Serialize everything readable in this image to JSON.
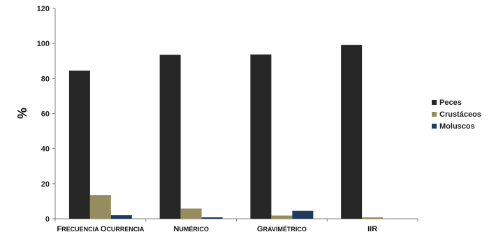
{
  "chart_data": {
    "type": "bar",
    "ylabel": "%",
    "ylim": [
      0,
      120
    ],
    "yticks": [
      0,
      20,
      40,
      60,
      80,
      100,
      120
    ],
    "grid": false,
    "legend_position": "right",
    "categories": [
      [
        {
          "t": "F",
          "b": true
        },
        {
          "t": "RECUENCIA ",
          "b": false
        },
        {
          "t": "O",
          "b": true
        },
        {
          "t": "CURRENCIA",
          "b": false
        }
      ],
      [
        {
          "t": "N",
          "b": true
        },
        {
          "t": "UMÉRICO",
          "b": false
        }
      ],
      [
        {
          "t": "G",
          "b": true
        },
        {
          "t": "RAVIMÉTRICO",
          "b": false
        }
      ],
      [
        {
          "t": "IIR",
          "b": true
        }
      ]
    ],
    "series": [
      {
        "name": "Peces",
        "color": "#262626",
        "values": [
          84.5,
          93.5,
          93.7,
          99.2
        ]
      },
      {
        "name": "Crustáceos",
        "color": "#958d5e",
        "values": [
          13.5,
          5.8,
          1.8,
          0.8
        ]
      },
      {
        "name": "Moluscos",
        "color": "#1f3a5f",
        "values": [
          2.0,
          0.8,
          4.5,
          0.0
        ]
      }
    ]
  }
}
